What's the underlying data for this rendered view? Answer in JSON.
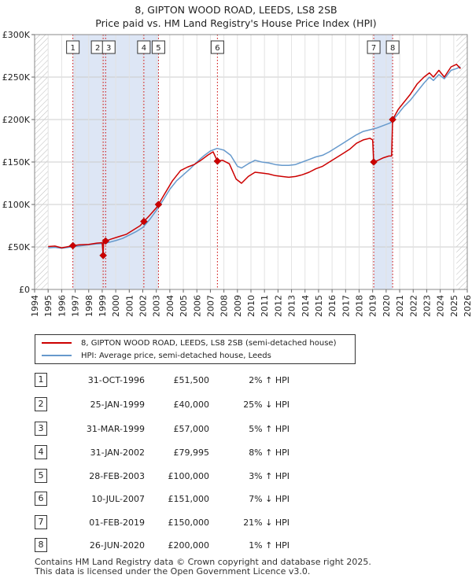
{
  "title_line1": "8, GIPTON WOOD ROAD, LEEDS, LS8 2SB",
  "title_line2": "Price paid vs. HM Land Registry's House Price Index (HPI)",
  "legend": {
    "property_label": "8, GIPTON WOOD ROAD, LEEDS, LS8 2SB (semi-detached house)",
    "hpi_label": "HPI: Average price, semi-detached house, Leeds"
  },
  "colors": {
    "property": "#cc0000",
    "hpi": "#6699cc",
    "shade": "#dde6f5",
    "grid": "#cccccc"
  },
  "sales": [
    {
      "num": "1",
      "date": "31-OCT-1996",
      "price": "£51,500",
      "hpi": "2% ↑ HPI"
    },
    {
      "num": "2",
      "date": "25-JAN-1999",
      "price": "£40,000",
      "hpi": "25% ↓ HPI"
    },
    {
      "num": "3",
      "date": "31-MAR-1999",
      "price": "£57,000",
      "hpi": "5% ↑ HPI"
    },
    {
      "num": "4",
      "date": "31-JAN-2002",
      "price": "£79,995",
      "hpi": "8% ↑ HPI"
    },
    {
      "num": "5",
      "date": "28-FEB-2003",
      "price": "£100,000",
      "hpi": "3% ↑ HPI"
    },
    {
      "num": "6",
      "date": "10-JUL-2007",
      "price": "£151,000",
      "hpi": "7% ↓ HPI"
    },
    {
      "num": "7",
      "date": "01-FEB-2019",
      "price": "£150,000",
      "hpi": "21% ↓ HPI"
    },
    {
      "num": "8",
      "date": "26-JUN-2020",
      "price": "£200,000",
      "hpi": "1% ↑ HPI"
    }
  ],
  "footer_line1": "Contains HM Land Registry data © Crown copyright and database right 2025.",
  "footer_line2": "This data is licensed under the Open Government Licence v3.0.",
  "chart_data": {
    "type": "line",
    "xlim": [
      1994,
      2026
    ],
    "ylim": [
      0,
      300000
    ],
    "x_ticks": [
      1994,
      1995,
      1996,
      1997,
      1998,
      1999,
      2000,
      2001,
      2002,
      2003,
      2004,
      2005,
      2006,
      2007,
      2008,
      2009,
      2010,
      2011,
      2012,
      2013,
      2014,
      2015,
      2016,
      2017,
      2018,
      2019,
      2020,
      2021,
      2022,
      2023,
      2024,
      2025,
      2026
    ],
    "y_ticks": [
      {
        "value": 0,
        "label": "£0"
      },
      {
        "value": 50000,
        "label": "£50K"
      },
      {
        "value": 100000,
        "label": "£100K"
      },
      {
        "value": 150000,
        "label": "£150K"
      },
      {
        "value": 200000,
        "label": "£200K"
      },
      {
        "value": 250000,
        "label": "£250K"
      },
      {
        "value": 300000,
        "label": "£300K"
      }
    ],
    "shaded_ranges": [
      [
        1996.83,
        2003.16
      ],
      [
        2019.08,
        2020.48
      ]
    ],
    "hatched_ranges": [
      [
        1994,
        1995
      ],
      [
        2025.2,
        2026
      ]
    ],
    "sale_points": [
      {
        "label": "1",
        "x": 1996.83,
        "y": 51500
      },
      {
        "label": "2",
        "x": 1999.07,
        "y": 40000
      },
      {
        "label": "3",
        "x": 1999.25,
        "y": 57000
      },
      {
        "label": "4",
        "x": 2002.08,
        "y": 79995
      },
      {
        "label": "5",
        "x": 2003.16,
        "y": 100000
      },
      {
        "label": "6",
        "x": 2007.52,
        "y": 151000
      },
      {
        "label": "7",
        "x": 2019.08,
        "y": 150000
      },
      {
        "label": "8",
        "x": 2020.48,
        "y": 200000
      }
    ],
    "series": [
      {
        "name": "8, GIPTON WOOD ROAD, LEEDS, LS8 2SB (semi-detached house)",
        "x": [
          1995.0,
          1995.5,
          1996.0,
          1996.5,
          1996.83,
          1997.3,
          1998.0,
          1998.6,
          1999.0,
          1999.07,
          1999.1,
          1999.25,
          1999.6,
          2000.2,
          2000.8,
          2001.3,
          2001.8,
          2002.08,
          2002.5,
          2003.0,
          2003.16,
          2003.6,
          2004.2,
          2004.8,
          2005.3,
          2005.8,
          2006.3,
          2006.8,
          2007.2,
          2007.52,
          2007.9,
          2008.4,
          2008.9,
          2009.3,
          2009.8,
          2010.3,
          2010.8,
          2011.3,
          2011.8,
          2012.3,
          2012.8,
          2013.3,
          2013.8,
          2014.3,
          2014.8,
          2015.3,
          2015.8,
          2016.3,
          2016.8,
          2017.3,
          2017.8,
          2018.3,
          2018.8,
          2019.0,
          2019.08,
          2019.4,
          2019.8,
          2020.2,
          2020.4,
          2020.48,
          2020.9,
          2021.3,
          2021.8,
          2022.3,
          2022.8,
          2023.2,
          2023.5,
          2023.9,
          2024.3,
          2024.8,
          2025.2,
          2025.5
        ],
        "values": [
          50500,
          51000,
          49000,
          50500,
          51500,
          52500,
          53000,
          54500,
          55000,
          40000,
          57000,
          57000,
          59000,
          62000,
          65000,
          70000,
          75000,
          79995,
          87000,
          96000,
          100000,
          112000,
          128000,
          140000,
          144000,
          147000,
          152000,
          158000,
          162000,
          151000,
          152000,
          148000,
          130000,
          125000,
          133000,
          138000,
          137000,
          136000,
          134000,
          133000,
          132000,
          133000,
          135000,
          138000,
          142000,
          145000,
          150000,
          155000,
          160000,
          165000,
          172000,
          176000,
          178000,
          176000,
          150000,
          152000,
          155000,
          157000,
          157000,
          200000,
          212000,
          220000,
          230000,
          242000,
          250000,
          255000,
          250000,
          258000,
          250000,
          262000,
          265000,
          260000
        ]
      },
      {
        "name": "HPI: Average price, semi-detached house, Leeds",
        "x": [
          1995.0,
          1995.5,
          1996.0,
          1996.5,
          1997.0,
          1997.5,
          1998.0,
          1998.5,
          1999.0,
          1999.5,
          2000.0,
          2000.5,
          2001.0,
          2001.5,
          2002.0,
          2002.5,
          2003.0,
          2003.5,
          2004.0,
          2004.5,
          2005.0,
          2005.5,
          2006.0,
          2006.5,
          2007.0,
          2007.5,
          2008.0,
          2008.5,
          2009.0,
          2009.3,
          2009.8,
          2010.3,
          2010.8,
          2011.3,
          2011.8,
          2012.3,
          2012.8,
          2013.3,
          2013.8,
          2014.3,
          2014.8,
          2015.3,
          2015.8,
          2016.3,
          2016.8,
          2017.3,
          2017.8,
          2018.3,
          2018.8,
          2019.3,
          2019.8,
          2020.3,
          2020.8,
          2021.3,
          2021.8,
          2022.3,
          2022.8,
          2023.2,
          2023.5,
          2023.9,
          2024.3,
          2024.8,
          2025.2,
          2025.5
        ],
        "values": [
          49000,
          49500,
          48500,
          49500,
          50500,
          51500,
          52500,
          53500,
          54000,
          55500,
          57500,
          60000,
          64000,
          68000,
          73000,
          82000,
          93000,
          105000,
          118000,
          128000,
          135000,
          142000,
          150000,
          157000,
          163000,
          166000,
          164000,
          158000,
          145000,
          143000,
          148000,
          152000,
          150000,
          149000,
          147000,
          146000,
          146000,
          147000,
          150000,
          153000,
          156000,
          158000,
          162000,
          167000,
          172000,
          177000,
          182000,
          186000,
          188000,
          190000,
          193000,
          196000,
          205000,
          215000,
          223000,
          233000,
          243000,
          250000,
          246000,
          253000,
          248000,
          258000,
          260000,
          262000
        ]
      }
    ]
  }
}
